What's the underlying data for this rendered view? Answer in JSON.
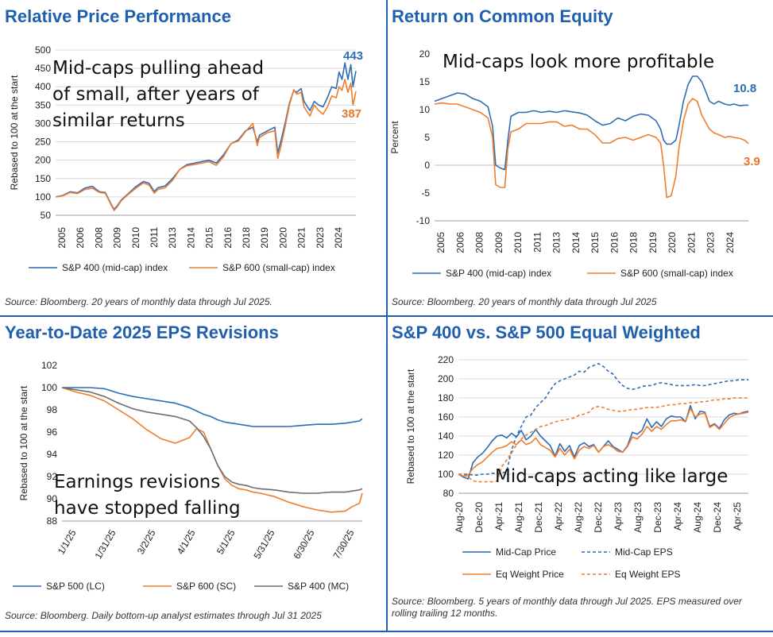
{
  "colors": {
    "accent": "#1f5fae",
    "mid": "#2e6db5",
    "small": "#ee7d2e",
    "gray": "#6e6e6e",
    "orange_label": "#e8772e"
  },
  "panels": [
    {
      "title": "Relative Price Performance",
      "source": "Source: Bloomberg. 20 years of monthly data through Jul 2025."
    },
    {
      "title": "Return on Common Equity",
      "source": "Source: Bloomberg. 20 years of monthly data through Jul 2025"
    },
    {
      "title": "Year-to-Date 2025 EPS Revisions",
      "source": "Source: Bloomberg. Daily bottom-up analyst estimates through Jul 31 2025"
    },
    {
      "title": "S&P 400 vs. S&P 500 Equal Weighted",
      "source": "Source: Bloomberg. 5 years of monthly data through Jul 2025. EPS measured over rolling trailing 12 months."
    }
  ],
  "chart_data": [
    {
      "type": "line",
      "title": "Relative Price Performance",
      "ylabel": "Rebased to 100 at the start",
      "ylim": [
        50,
        500
      ],
      "yticks": [
        "50",
        "100",
        "150",
        "200",
        "250",
        "300",
        "350",
        "400",
        "450",
        "500"
      ],
      "xticks": [
        "2005",
        "2006",
        "2008",
        "2009",
        "2010",
        "2011",
        "2013",
        "2014",
        "2015",
        "2016",
        "2018",
        "2019",
        "2020",
        "2021",
        "2023",
        "2024"
      ],
      "annotation": [
        "Mid-caps pulling ahead",
        "of small, after years of",
        "similar returns"
      ],
      "end_labels": [
        "443",
        "387"
      ],
      "x": [
        2005.0,
        2005.5,
        2006.0,
        2006.5,
        2007.0,
        2007.5,
        2008.0,
        2008.4,
        2008.8,
        2009.0,
        2009.2,
        2009.5,
        2010.0,
        2010.5,
        2011.0,
        2011.4,
        2011.75,
        2012.0,
        2012.5,
        2013.0,
        2013.5,
        2014.0,
        2014.5,
        2015.0,
        2015.5,
        2016.0,
        2016.5,
        2017.0,
        2017.5,
        2018.0,
        2018.5,
        2018.8,
        2018.95,
        2019.5,
        2020.0,
        2020.2,
        2020.4,
        2020.7,
        2021.0,
        2021.3,
        2021.5,
        2021.8,
        2022.0,
        2022.4,
        2022.7,
        2023.0,
        2023.3,
        2023.6,
        2023.9,
        2024.2,
        2024.4,
        2024.6,
        2024.8,
        2025.0,
        2025.2,
        2025.35,
        2025.55
      ],
      "series": [
        {
          "name": "S&P 400 (mid-cap) index",
          "values": [
            100,
            104,
            114,
            111,
            124,
            129,
            114,
            112,
            80,
            66,
            75,
            92,
            110,
            128,
            142,
            137,
            115,
            125,
            130,
            150,
            175,
            188,
            192,
            196,
            200,
            192,
            215,
            245,
            255,
            280,
            290,
            250,
            268,
            280,
            290,
            220,
            250,
            300,
            355,
            390,
            385,
            395,
            360,
            335,
            360,
            350,
            345,
            370,
            400,
            395,
            440,
            420,
            465,
            420,
            460,
            400,
            443
          ]
        },
        {
          "name": "S&P 600 (small-cap) index",
          "values": [
            100,
            103,
            112,
            109,
            120,
            124,
            112,
            110,
            78,
            63,
            72,
            90,
            108,
            124,
            138,
            132,
            110,
            120,
            125,
            145,
            175,
            185,
            188,
            192,
            196,
            186,
            210,
            245,
            252,
            278,
            300,
            240,
            262,
            275,
            280,
            205,
            235,
            290,
            350,
            392,
            380,
            385,
            345,
            320,
            350,
            335,
            325,
            345,
            375,
            370,
            400,
            390,
            420,
            385,
            410,
            350,
            387
          ]
        }
      ]
    },
    {
      "type": "line",
      "title": "Return on Common Equity",
      "ylabel": "Percent",
      "ylim": [
        -10,
        20
      ],
      "yticks": [
        "-10",
        "-5",
        "0",
        "5",
        "10",
        "15",
        "20"
      ],
      "xticks": [
        "2005",
        "2006",
        "2008",
        "2009",
        "2010",
        "2011",
        "2013",
        "2014",
        "2015",
        "2016",
        "2018",
        "2019",
        "2020",
        "2021",
        "2023",
        "2024"
      ],
      "annotation": [
        "Mid-caps look more profitable"
      ],
      "end_labels": [
        "10.8",
        "3.9"
      ],
      "x": [
        2005.0,
        2005.5,
        2006.0,
        2006.5,
        2007.0,
        2007.5,
        2008.0,
        2008.5,
        2008.8,
        2009.0,
        2009.3,
        2009.6,
        2009.8,
        2010.0,
        2010.5,
        2011.0,
        2011.5,
        2012.0,
        2012.5,
        2013.0,
        2013.5,
        2014.0,
        2014.5,
        2015.0,
        2015.5,
        2016.0,
        2016.5,
        2017.0,
        2017.5,
        2018.0,
        2018.5,
        2019.0,
        2019.5,
        2019.8,
        2020.0,
        2020.2,
        2020.5,
        2020.8,
        2021.0,
        2021.3,
        2021.6,
        2021.9,
        2022.2,
        2022.5,
        2022.8,
        2023.0,
        2023.3,
        2023.6,
        2024.0,
        2024.3,
        2024.6,
        2025.0,
        2025.3,
        2025.55
      ],
      "series": [
        {
          "name": "S&P 400 (mid-cap) index",
          "values": [
            11.5,
            12.0,
            12.5,
            13.0,
            12.8,
            12.0,
            11.5,
            10.5,
            7.0,
            0.0,
            -0.5,
            -0.8,
            4.5,
            8.8,
            9.5,
            9.5,
            9.8,
            9.5,
            9.7,
            9.5,
            9.8,
            9.6,
            9.4,
            9.0,
            8.0,
            7.2,
            7.5,
            8.5,
            8.0,
            8.8,
            9.2,
            9.0,
            8.0,
            6.5,
            4.5,
            3.8,
            3.8,
            4.5,
            7.0,
            11.5,
            14.5,
            16.0,
            16.0,
            15.0,
            13.0,
            11.5,
            11.0,
            11.5,
            11.0,
            10.8,
            11.0,
            10.7,
            10.8,
            10.8
          ]
        },
        {
          "name": "S&P 600 (small-cap) index",
          "values": [
            11.0,
            11.2,
            11.0,
            11.0,
            10.5,
            10.0,
            9.5,
            8.5,
            5.0,
            -3.5,
            -4.0,
            -4.0,
            3.0,
            6.0,
            6.5,
            7.5,
            7.5,
            7.5,
            7.8,
            7.8,
            7.0,
            7.2,
            6.5,
            6.5,
            5.5,
            4.0,
            4.0,
            4.8,
            5.0,
            4.5,
            5.0,
            5.5,
            5.0,
            4.0,
            0.0,
            -5.8,
            -5.5,
            -2.0,
            3.0,
            8.0,
            11.0,
            12.0,
            11.5,
            9.0,
            7.5,
            6.5,
            5.8,
            5.5,
            5.0,
            5.2,
            5.0,
            4.8,
            4.5,
            3.9
          ]
        }
      ]
    },
    {
      "type": "line",
      "title": "Year-to-Date 2025 EPS Revisions",
      "ylabel": "Rebased to 100 at the start",
      "ylim": [
        88,
        102
      ],
      "yticks": [
        "88",
        "90",
        "92",
        "94",
        "96",
        "98",
        "100",
        "102"
      ],
      "xticks": [
        "1/1/25",
        "1/31/25",
        "3/2/25",
        "4/1/25",
        "5/1/25",
        "5/31/25",
        "6/30/25",
        "7/30/25"
      ],
      "annotation": [
        "Earnings revisions",
        "have stopped falling"
      ],
      "x": [
        0,
        10,
        20,
        30,
        40,
        50,
        60,
        70,
        80,
        90,
        95,
        100,
        105,
        110,
        115,
        120,
        125,
        130,
        135,
        140,
        150,
        160,
        170,
        180,
        190,
        200,
        205,
        210,
        212
      ],
      "series": [
        {
          "name": "S&P 500 (LC)",
          "values": [
            100,
            100.0,
            100.0,
            99.9,
            99.5,
            99.2,
            99.0,
            98.8,
            98.6,
            98.2,
            97.9,
            97.6,
            97.4,
            97.1,
            96.9,
            96.8,
            96.7,
            96.6,
            96.5,
            96.5,
            96.5,
            96.5,
            96.6,
            96.7,
            96.7,
            96.8,
            96.9,
            97.0,
            97.2
          ]
        },
        {
          "name": "S&P 600 (SC)",
          "values": [
            100,
            99.6,
            99.3,
            98.8,
            98.0,
            97.2,
            96.2,
            95.4,
            95.0,
            95.5,
            96.3,
            96.0,
            94.5,
            93.0,
            91.8,
            91.2,
            90.9,
            90.8,
            90.6,
            90.5,
            90.2,
            89.7,
            89.3,
            89.0,
            88.8,
            88.9,
            89.3,
            89.6,
            90.5
          ]
        },
        {
          "name": "S&P 400 (MC)",
          "values": [
            100,
            99.8,
            99.6,
            99.2,
            98.6,
            98.1,
            97.8,
            97.6,
            97.4,
            97.0,
            96.4,
            95.6,
            94.5,
            93.0,
            92.0,
            91.5,
            91.3,
            91.2,
            91.0,
            90.9,
            90.8,
            90.6,
            90.5,
            90.5,
            90.6,
            90.6,
            90.7,
            90.8,
            90.9
          ]
        }
      ]
    },
    {
      "type": "line",
      "title": "S&P 400 vs. S&P 500 Equal Weighted",
      "ylabel": "Rebased to 100 at the start",
      "ylim": [
        80,
        220
      ],
      "yticks": [
        "80",
        "100",
        "120",
        "140",
        "160",
        "180",
        "200",
        "220"
      ],
      "xticks": [
        "Aug-20",
        "Dec-20",
        "Apr-21",
        "Aug-21",
        "Dec-21",
        "Apr-22",
        "Aug-22",
        "Dec-22",
        "Apr-23",
        "Aug-23",
        "Dec-23",
        "Apr-24",
        "Aug-24",
        "Dec-24",
        "Apr-25"
      ],
      "annotation": [
        "Mid-caps acting like large"
      ],
      "x": [
        0,
        1,
        2,
        3,
        4,
        5,
        6,
        7,
        8,
        9,
        10,
        11,
        12,
        13,
        14,
        15,
        16,
        17,
        18,
        19,
        20,
        21,
        22,
        23,
        24,
        25,
        26,
        27,
        28,
        29,
        30,
        31,
        32,
        33,
        34,
        35,
        36,
        37,
        38,
        39,
        40,
        41,
        42,
        43,
        44,
        45,
        46,
        47,
        48,
        49,
        50,
        51,
        52,
        53,
        54,
        55,
        56,
        57,
        58,
        59,
        60
      ],
      "series": [
        {
          "name": "Mid-Cap Price",
          "dash": false,
          "values": [
            100,
            97,
            95,
            112,
            118,
            122,
            128,
            135,
            140,
            141,
            138,
            143,
            139,
            146,
            136,
            140,
            147,
            140,
            135,
            130,
            119,
            132,
            124,
            130,
            118,
            130,
            133,
            129,
            131,
            123,
            129,
            135,
            129,
            126,
            123,
            130,
            144,
            142,
            146,
            158,
            149,
            155,
            150,
            158,
            161,
            160,
            160,
            155,
            172,
            158,
            166,
            165,
            150,
            153,
            148,
            157,
            162,
            164,
            163,
            165,
            166
          ]
        },
        {
          "name": "Mid-Cap EPS",
          "dash": true,
          "values": [
            100,
            100,
            100,
            99,
            99,
            100,
            100,
            101,
            101,
            101,
            103,
            125,
            140,
            150,
            160,
            162,
            170,
            175,
            180,
            188,
            195,
            198,
            200,
            202,
            204,
            208,
            207,
            212,
            214,
            216,
            213,
            208,
            205,
            198,
            193,
            190,
            189,
            190,
            192,
            193,
            193,
            195,
            196,
            195,
            194,
            193,
            193,
            193,
            193,
            194,
            193,
            193,
            194,
            195,
            196,
            197,
            198,
            198,
            199,
            199,
            199
          ]
        },
        {
          "name": "Eq Weight Price",
          "dash": false,
          "values": [
            100,
            98,
            99,
            106,
            110,
            113,
            118,
            123,
            127,
            128,
            130,
            134,
            131,
            136,
            131,
            133,
            138,
            131,
            128,
            125,
            118,
            127,
            120,
            126,
            116,
            125,
            129,
            127,
            130,
            123,
            129,
            131,
            128,
            124,
            123,
            129,
            139,
            137,
            142,
            150,
            145,
            150,
            147,
            152,
            156,
            156,
            157,
            155,
            169,
            160,
            163,
            164,
            149,
            152,
            147,
            153,
            159,
            162,
            163,
            164,
            165
          ]
        },
        {
          "name": "Eq Weight EPS",
          "dash": true,
          "values": [
            100,
            99,
            97,
            93,
            92,
            92,
            92,
            92,
            93,
            108,
            115,
            122,
            131,
            137,
            141,
            144,
            147,
            150,
            151,
            153,
            155,
            156,
            157,
            158,
            159,
            162,
            163,
            165,
            170,
            171,
            170,
            168,
            167,
            166,
            166,
            167,
            168,
            168,
            169,
            170,
            170,
            170,
            171,
            172,
            173,
            173,
            174,
            174,
            175,
            175,
            176,
            176,
            177,
            178,
            178,
            179,
            179,
            180,
            180,
            180,
            180
          ]
        }
      ]
    }
  ]
}
